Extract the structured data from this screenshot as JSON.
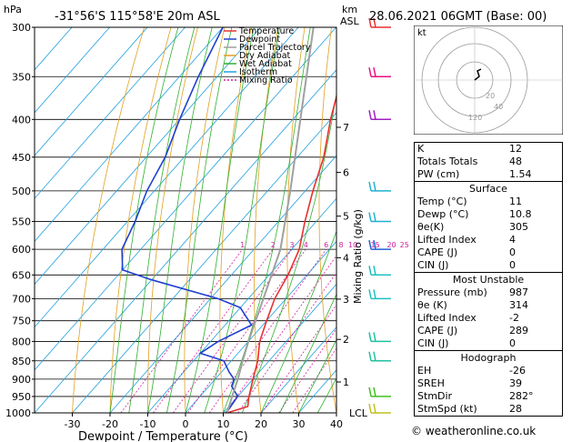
{
  "header": {
    "units": "hPa",
    "location": "-31°56'S  115°58'E  20m  ASL",
    "km_label": "km",
    "asl_label": "ASL",
    "datetime": "28.06.2021  06GMT  (Base: 00)"
  },
  "footer": "© weatheronline.co.uk",
  "chart_data": {
    "type": "line",
    "title": "",
    "xlabel": "Dewpoint / Temperature (°C)",
    "ylabel": "hPa",
    "right_label": "Mixing Ratio (g/kg)",
    "xlim": [
      -40,
      40
    ],
    "ylim": [
      1000,
      300
    ],
    "x_ticks": [
      -30,
      -20,
      -10,
      0,
      10,
      20,
      30,
      40
    ],
    "pressure_levels": [
      300,
      350,
      400,
      450,
      500,
      550,
      600,
      650,
      700,
      750,
      800,
      850,
      900,
      950,
      1000
    ],
    "km_ticks": [
      {
        "km": "1",
        "p": 908
      },
      {
        "km": "2",
        "p": 795
      },
      {
        "km": "3",
        "p": 701
      },
      {
        "km": "4",
        "p": 616
      },
      {
        "km": "5",
        "p": 541
      },
      {
        "km": "6",
        "p": 472
      },
      {
        "km": "7",
        "p": 410
      }
    ],
    "lcl": {
      "label": "LCL",
      "p": 1000
    },
    "mixing_ratio_labels": [
      "1",
      "2",
      "3",
      "4",
      "6",
      "8",
      "10",
      "15",
      "20",
      "25"
    ],
    "legend": [
      {
        "name": "Temperature",
        "color": "#e83030"
      },
      {
        "name": "Dewpoint",
        "color": "#2040d0"
      },
      {
        "name": "Parcel Trajectory",
        "color": "#a0a0a0"
      },
      {
        "name": "Dry Adiabat",
        "color": "#e0a020"
      },
      {
        "name": "Wet Adiabat",
        "color": "#30b030"
      },
      {
        "name": "Isotherm",
        "color": "#20a0e0"
      },
      {
        "name": "Mixing Ratio",
        "color": "#d020a0"
      }
    ],
    "series": [
      {
        "name": "Temperature",
        "color": "#e83030",
        "points": [
          [
            1000,
            11
          ],
          [
            980,
            15
          ],
          [
            950,
            13
          ],
          [
            900,
            10
          ],
          [
            850,
            7
          ],
          [
            800,
            3
          ],
          [
            750,
            0
          ],
          [
            700,
            -3
          ],
          [
            650,
            -5
          ],
          [
            600,
            -8
          ],
          [
            550,
            -13
          ],
          [
            500,
            -18
          ],
          [
            450,
            -23
          ],
          [
            400,
            -30
          ],
          [
            350,
            -37
          ],
          [
            300,
            -45
          ]
        ]
      },
      {
        "name": "Dewpoint",
        "color": "#2040d0",
        "points": [
          [
            1000,
            10.8
          ],
          [
            950,
            10
          ],
          [
            920,
            6
          ],
          [
            900,
            5
          ],
          [
            880,
            2
          ],
          [
            850,
            -2
          ],
          [
            830,
            -10
          ],
          [
            800,
            -8
          ],
          [
            760,
            -3
          ],
          [
            720,
            -10
          ],
          [
            700,
            -18
          ],
          [
            660,
            -40
          ],
          [
            640,
            -50
          ],
          [
            600,
            -55
          ],
          [
            550,
            -58
          ],
          [
            500,
            -62
          ],
          [
            450,
            -65
          ],
          [
            400,
            -70
          ],
          [
            350,
            -75
          ],
          [
            300,
            -80
          ]
        ]
      },
      {
        "name": "Parcel Trajectory",
        "color": "#a0a0a0",
        "points": [
          [
            1000,
            11
          ],
          [
            950,
            8.5
          ],
          [
            900,
            6
          ],
          [
            850,
            3
          ],
          [
            800,
            0
          ],
          [
            700,
            -6
          ],
          [
            600,
            -13
          ],
          [
            500,
            -24
          ],
          [
            400,
            -38
          ],
          [
            300,
            -56
          ]
        ]
      }
    ]
  },
  "hodograph": {
    "label": "kt",
    "rings": [
      "20",
      "40"
    ],
    "ring_label_120": "120"
  },
  "indices": [
    {
      "label": "K",
      "value": "12"
    },
    {
      "label": "Totals Totals",
      "value": "48"
    },
    {
      "label": "PW (cm)",
      "value": "1.54"
    }
  ],
  "surface": {
    "title": "Surface",
    "rows": [
      {
        "label": "Temp (°C)",
        "value": "11"
      },
      {
        "label": "Dewp (°C)",
        "value": "10.8"
      },
      {
        "label": "θe(K)",
        "value": "305"
      },
      {
        "label": "Lifted Index",
        "value": "4"
      },
      {
        "label": "CAPE (J)",
        "value": "0"
      },
      {
        "label": "CIN (J)",
        "value": "0"
      }
    ]
  },
  "most_unstable": {
    "title": "Most Unstable",
    "rows": [
      {
        "label": "Pressure (mb)",
        "value": "987"
      },
      {
        "label": "θe (K)",
        "value": "314"
      },
      {
        "label": "Lifted Index",
        "value": "-2"
      },
      {
        "label": "CAPE (J)",
        "value": "289"
      },
      {
        "label": "CIN (J)",
        "value": "0"
      }
    ]
  },
  "hodograph_stats": {
    "title": "Hodograph",
    "rows": [
      {
        "label": "EH",
        "value": "-26"
      },
      {
        "label": "SREH",
        "value": "39"
      },
      {
        "label": "StmDir",
        "value": "282°"
      },
      {
        "label": "StmSpd (kt)",
        "value": "28"
      }
    ]
  },
  "wind_barbs": [
    {
      "p": 300,
      "color": "#e83030"
    },
    {
      "p": 350,
      "color": "#e81080"
    },
    {
      "p": 400,
      "color": "#a020c0"
    },
    {
      "p": 500,
      "color": "#20b0d0"
    },
    {
      "p": 550,
      "color": "#20b0d0"
    },
    {
      "p": 600,
      "color": "#2060d0"
    },
    {
      "p": 650,
      "color": "#20c0c0"
    },
    {
      "p": 700,
      "color": "#20c0c0"
    },
    {
      "p": 800,
      "color": "#20c0a0"
    },
    {
      "p": 850,
      "color": "#20c0a0"
    },
    {
      "p": 950,
      "color": "#40c020"
    },
    {
      "p": 1000,
      "color": "#c0c020"
    }
  ]
}
